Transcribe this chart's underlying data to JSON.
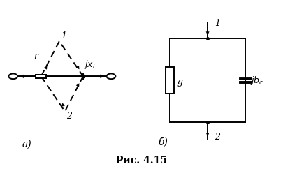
{
  "background_color": "#ffffff",
  "fig_width": 4.06,
  "fig_height": 2.45,
  "dpi": 100,
  "caption": "Рис. 4.15",
  "caption_fontsize": 10,
  "label_a": "а)",
  "label_b": "б)",
  "label_fontsize": 10
}
